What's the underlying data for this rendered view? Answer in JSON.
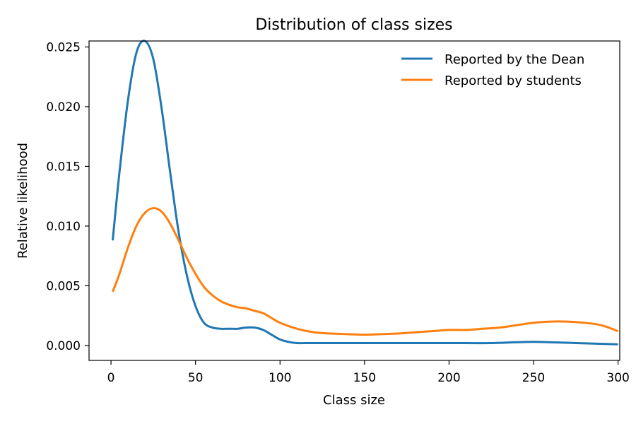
{
  "chart_data": {
    "type": "line",
    "title": "Distribution of class sizes",
    "xlabel": "Class size",
    "ylabel": "Relative likelihood",
    "xlim": [
      -13,
      301
    ],
    "ylim": [
      -0.00125,
      0.0255
    ],
    "xticks": [
      0,
      50,
      100,
      150,
      200,
      250,
      300
    ],
    "xtick_labels": [
      "0",
      "50",
      "100",
      "150",
      "200",
      "250",
      "300"
    ],
    "yticks": [
      0.0,
      0.005,
      0.01,
      0.015,
      0.02,
      0.025
    ],
    "ytick_labels": [
      "0.000",
      "0.005",
      "0.010",
      "0.015",
      "0.020",
      "0.025"
    ],
    "grid": false,
    "legend_position": "top-right",
    "series": [
      {
        "name": "Reported by the Dean",
        "color": "#1f77b4",
        "x": [
          1,
          5,
          10,
          15,
          20,
          25,
          30,
          35,
          40,
          45,
          50,
          55,
          60,
          65,
          70,
          75,
          80,
          85,
          90,
          95,
          100,
          105,
          110,
          115,
          120,
          130,
          150,
          175,
          200,
          225,
          250,
          275,
          300
        ],
        "y": [
          0.0088,
          0.0145,
          0.0205,
          0.0245,
          0.0255,
          0.024,
          0.0198,
          0.0145,
          0.0095,
          0.0058,
          0.0033,
          0.0019,
          0.0015,
          0.0014,
          0.0014,
          0.0014,
          0.0015,
          0.0015,
          0.0013,
          0.0009,
          0.0005,
          0.0003,
          0.0002,
          0.0002,
          0.0002,
          0.0002,
          0.0002,
          0.0002,
          0.0002,
          0.0002,
          0.0003,
          0.0002,
          0.0001
        ]
      },
      {
        "name": "Reported by students",
        "color": "#ff7f0e",
        "x": [
          1,
          5,
          10,
          15,
          20,
          25,
          30,
          35,
          40,
          45,
          50,
          55,
          60,
          65,
          70,
          75,
          80,
          85,
          90,
          95,
          100,
          110,
          120,
          130,
          140,
          150,
          160,
          170,
          180,
          190,
          200,
          210,
          220,
          230,
          240,
          250,
          260,
          270,
          280,
          290,
          300
        ],
        "y": [
          0.0045,
          0.006,
          0.0082,
          0.01,
          0.0111,
          0.0115,
          0.0112,
          0.0102,
          0.0088,
          0.0073,
          0.006,
          0.0049,
          0.0042,
          0.0037,
          0.0034,
          0.0032,
          0.0031,
          0.0029,
          0.0027,
          0.0023,
          0.0019,
          0.0014,
          0.0011,
          0.001,
          0.00095,
          0.0009,
          0.00095,
          0.001,
          0.0011,
          0.0012,
          0.0013,
          0.0013,
          0.0014,
          0.0015,
          0.0017,
          0.0019,
          0.002,
          0.002,
          0.0019,
          0.0017,
          0.0012
        ]
      }
    ]
  }
}
